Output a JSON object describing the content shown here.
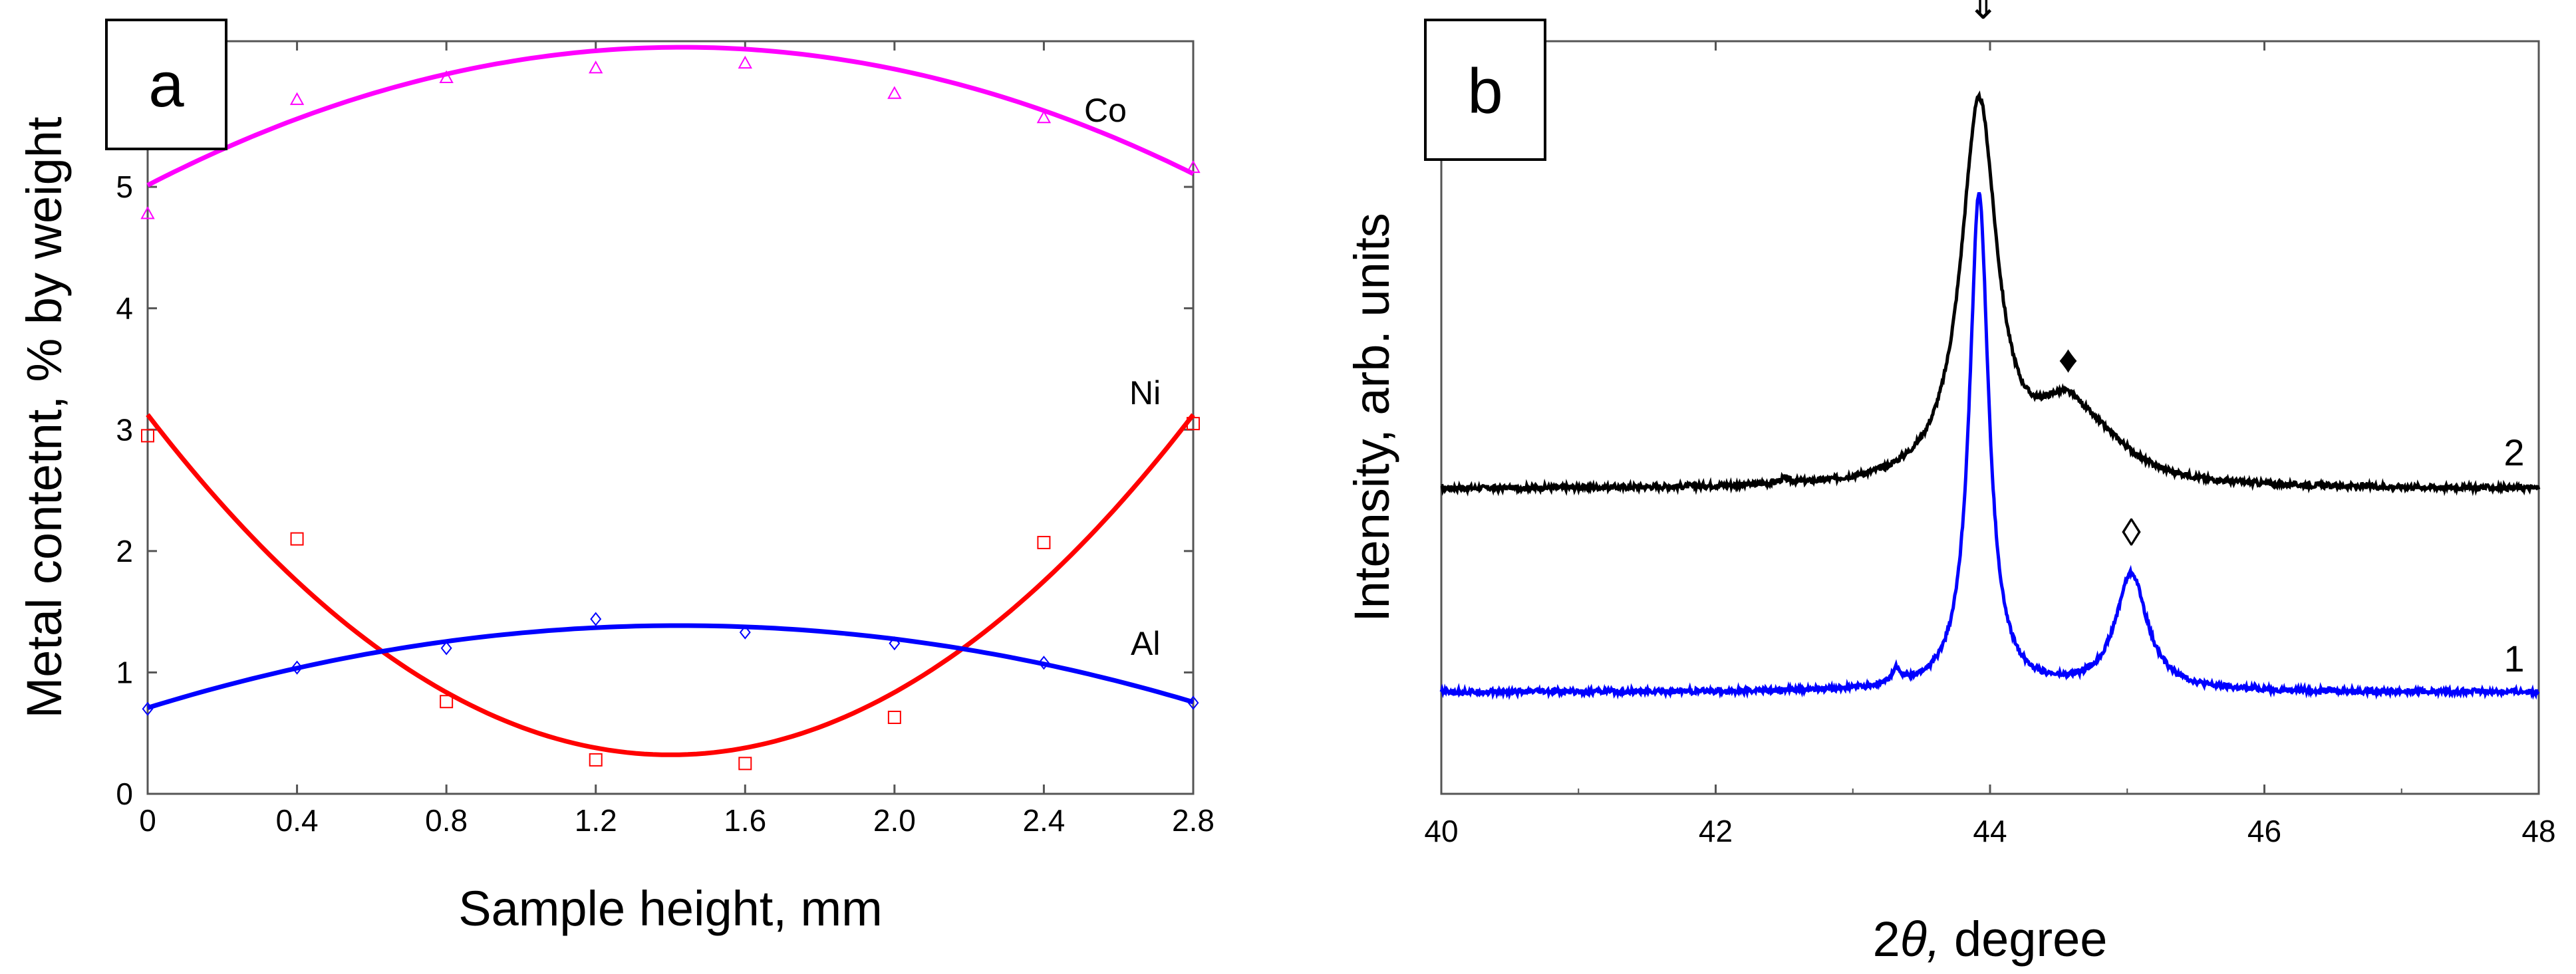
{
  "chart_data": [
    {
      "type": "scatter",
      "panel": "a",
      "xlabel": "Sample height, mm",
      "ylabel": "Metal contetnt, % by weight",
      "xlim": [
        0,
        2.8
      ],
      "ylim": [
        0,
        6.2
      ],
      "xticks": [
        0,
        0.4,
        0.8,
        1.2,
        1.6,
        2.0,
        2.4,
        2.8
      ],
      "xtick_labels": [
        "0",
        "0.4",
        "0.8",
        "1.2",
        "1.6",
        "2.0",
        "2.4",
        "2.8"
      ],
      "yticks": [
        0,
        1,
        2,
        3,
        4,
        5
      ],
      "ytick_labels": [
        "0",
        "1",
        "2",
        "3",
        "4",
        "5"
      ],
      "grid": false,
      "series": [
        {
          "name": "Co",
          "color": "#ff00ff",
          "marker": "triangle",
          "points": [
            [
              0,
              4.78
            ],
            [
              0.4,
              5.72
            ],
            [
              0.8,
              5.9
            ],
            [
              1.2,
              5.98
            ],
            [
              1.6,
              6.02
            ],
            [
              2.0,
              5.77
            ],
            [
              2.4,
              5.57
            ],
            [
              2.8,
              5.16
            ]
          ],
          "fit": [
            [
              0,
              4.97
            ],
            [
              0.4,
              5.62
            ],
            [
              0.8,
              5.95
            ],
            [
              1.45,
              6.1
            ],
            [
              2.0,
              5.98
            ],
            [
              2.4,
              5.62
            ],
            [
              2.8,
              5.12
            ]
          ]
        },
        {
          "name": "Ni",
          "color": "#ff0000",
          "marker": "square",
          "points": [
            [
              0,
              2.95
            ],
            [
              0.4,
              2.1
            ],
            [
              0.8,
              0.76
            ],
            [
              1.2,
              0.28
            ],
            [
              1.6,
              0.25
            ],
            [
              2.0,
              0.63
            ],
            [
              2.4,
              2.07
            ],
            [
              2.8,
              3.05
            ]
          ],
          "fit": [
            [
              0,
              3.13
            ],
            [
              0.4,
              1.73
            ],
            [
              0.8,
              0.86
            ],
            [
              1.2,
              0.38
            ],
            [
              1.4,
              0.3
            ],
            [
              1.6,
              0.38
            ],
            [
              2.0,
              0.86
            ],
            [
              2.4,
              1.73
            ],
            [
              2.8,
              3.13
            ]
          ]
        },
        {
          "name": "Al",
          "color": "#0000ff",
          "marker": "diamond",
          "points": [
            [
              0,
              0.7
            ],
            [
              0.4,
              1.04
            ],
            [
              0.8,
              1.2
            ],
            [
              1.2,
              1.44
            ],
            [
              1.6,
              1.33
            ],
            [
              2.0,
              1.24
            ],
            [
              2.4,
              1.08
            ],
            [
              2.8,
              0.75
            ]
          ],
          "fit": [
            [
              0,
              0.7
            ],
            [
              0.4,
              1.05
            ],
            [
              0.8,
              1.26
            ],
            [
              1.2,
              1.36
            ],
            [
              1.45,
              1.38
            ],
            [
              1.6,
              1.37
            ],
            [
              2.0,
              1.28
            ],
            [
              2.4,
              1.08
            ],
            [
              2.8,
              0.75
            ]
          ]
        }
      ]
    },
    {
      "type": "line",
      "panel": "b",
      "xlabel_prefix": "2",
      "xlabel_theta": "θ,",
      "xlabel_rest": " degree",
      "ylabel": "Intensity, arb. units",
      "xlim": [
        40,
        48
      ],
      "ylim": [
        0,
        100
      ],
      "xticks": [
        40,
        42,
        44,
        46,
        48
      ],
      "xtick_labels": [
        "40",
        "42",
        "44",
        "46",
        "48"
      ],
      "y_tick_labels_shown": false,
      "grid": false,
      "series": [
        {
          "name": "2",
          "color": "#000000",
          "baseline": 40.5,
          "peaks": [
            {
              "center": 43.92,
              "height": 50.5,
              "width": 0.16
            },
            {
              "center": 44.55,
              "height": 8.5,
              "width": 0.26
            },
            {
              "center": 44.85,
              "height": 3,
              "width": 0.3
            },
            {
              "center": 42.5,
              "height": 0.6,
              "width": 0.05
            }
          ]
        },
        {
          "name": "1",
          "color": "#0000ff",
          "baseline": 13.5,
          "peaks": [
            {
              "center": 43.92,
              "height": 66,
              "width": 0.085
            },
            {
              "center": 45.03,
              "height": 15.5,
              "width": 0.14
            },
            {
              "center": 43.32,
              "height": 2,
              "width": 0.04
            }
          ]
        }
      ],
      "annotations": [
        {
          "symbol": "⇓",
          "x": 43.95,
          "y": 103
        },
        {
          "symbol": "♦",
          "x": 44.57,
          "y": 56
        },
        {
          "symbol": "◊",
          "x": 45.03,
          "y": 33
        }
      ]
    }
  ]
}
